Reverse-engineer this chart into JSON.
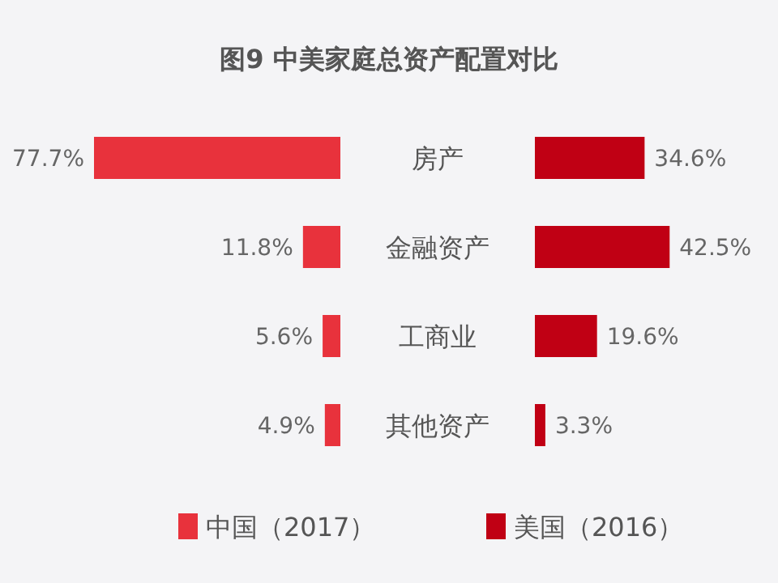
{
  "chart_data": [
    {
      "type": "bar",
      "orientation": "horizontal",
      "title": "图9 中美家庭总资产配置对比",
      "categories": [
        "房产",
        "金融资产",
        "工商业",
        "其他资产"
      ],
      "series": [
        {
          "name": "中国（2017）",
          "color": "#e8323c",
          "values": [
            77.7,
            11.8,
            5.6,
            4.9
          ],
          "value_labels": [
            "77.7%",
            "11.8%",
            "5.6%",
            "4.9%"
          ]
        }
      ],
      "legend": "bottom"
    },
    {
      "type": "bar",
      "orientation": "horizontal",
      "categories": [
        null,
        null,
        null,
        null
      ],
      "series": [
        {
          "name": "美国（2016）",
          "color": "#c00014",
          "values": [
            34.6,
            42.5,
            19.6,
            3.3
          ],
          "value_labels": [
            "34.6%",
            "42.5%",
            "19.6%",
            "3.3%"
          ]
        }
      ],
      "legend": "bottom"
    }
  ]
}
